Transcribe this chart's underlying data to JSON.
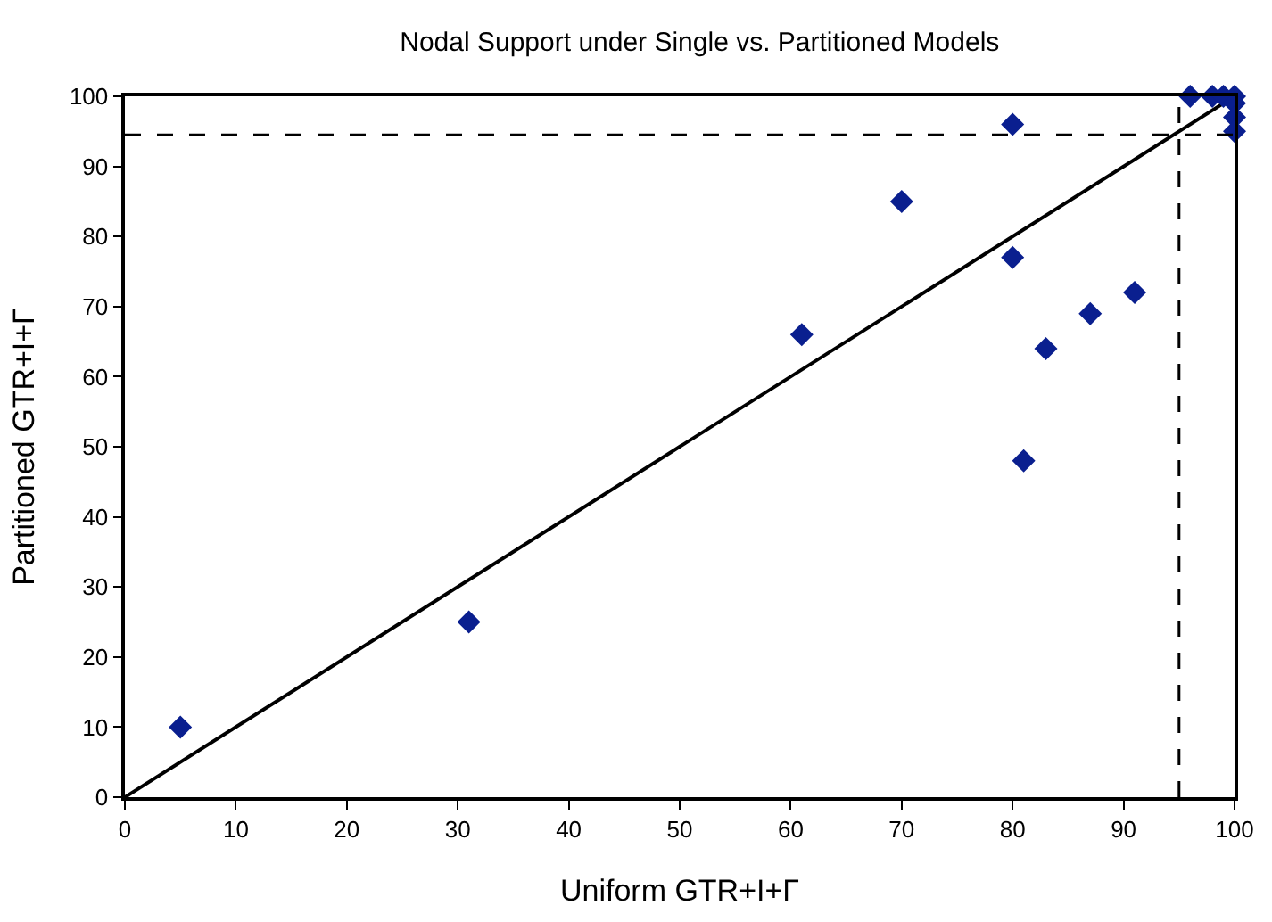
{
  "chart_data": {
    "type": "scatter",
    "title": "Nodal Support under Single vs. Partitioned Models",
    "xlabel": "Uniform GTR+I+Γ",
    "ylabel": "Partitioned GTR+I+Γ",
    "xlim": [
      0,
      100
    ],
    "ylim": [
      0,
      100
    ],
    "xticks": [
      0,
      10,
      20,
      30,
      40,
      50,
      60,
      70,
      80,
      90,
      100
    ],
    "yticks": [
      0,
      10,
      20,
      30,
      40,
      50,
      60,
      70,
      80,
      90,
      100
    ],
    "marker": "diamond",
    "series": [
      {
        "color": "#0a1f8f",
        "x": [
          5,
          31,
          61,
          70,
          80,
          80,
          81,
          83,
          87,
          91,
          96,
          98,
          99,
          100,
          100,
          100,
          100
        ],
        "values": [
          10,
          25,
          66,
          85,
          96,
          77,
          48,
          64,
          69,
          72,
          100,
          100,
          100,
          100,
          99,
          97,
          95
        ]
      },
      {
        "type": "line",
        "color": "#000000",
        "marker": "none",
        "line_style": "solid",
        "x": [
          0,
          100
        ],
        "values": [
          0,
          100
        ]
      }
    ],
    "ref_lines": [
      {
        "axis": "x",
        "value": 95,
        "color": "#000000",
        "line_style": "dashed"
      },
      {
        "axis": "y",
        "value": 94.5,
        "color": "#000000",
        "line_style": "dashed"
      }
    ]
  }
}
